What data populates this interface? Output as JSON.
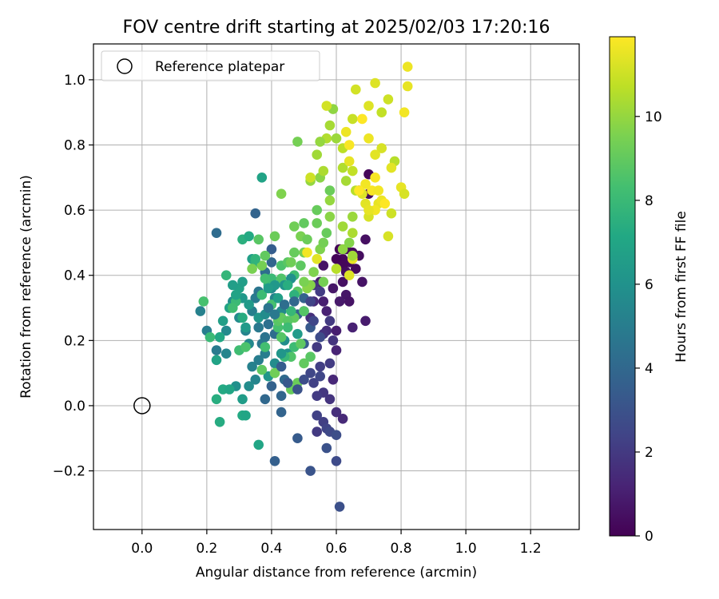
{
  "chart_data": {
    "type": "scatter",
    "title": "FOV centre drift starting at 2025/02/03 17:20:16",
    "xlabel": "Angular distance from reference (arcmin)",
    "ylabel": "Rotation from reference (arcmin)",
    "xlim": [
      -0.15,
      1.35
    ],
    "ylim": [
      -0.38,
      1.11
    ],
    "xticks": [
      0.0,
      0.2,
      0.4,
      0.6,
      0.8,
      1.0,
      1.2
    ],
    "xtick_labels": [
      "0.0",
      "0.2",
      "0.4",
      "0.6",
      "0.8",
      "1.0",
      "1.2"
    ],
    "yticks": [
      -0.2,
      0.0,
      0.2,
      0.4,
      0.6,
      0.8,
      1.0
    ],
    "ytick_labels": [
      "−0.2",
      "0.0",
      "0.2",
      "0.4",
      "0.6",
      "0.8",
      "1.0"
    ],
    "grid": true,
    "legend": {
      "placement": "upper-left",
      "entries": [
        {
          "label": "Reference platepar",
          "marker": "open-circle"
        }
      ]
    },
    "reference_point": {
      "x": 0.0,
      "y": 0.0
    },
    "colorbar": {
      "label": "Hours from first FF file",
      "colormap": "viridis",
      "range": [
        0,
        11.9
      ],
      "ticks": [
        0,
        2,
        4,
        6,
        8,
        10
      ],
      "tick_labels": [
        "0",
        "2",
        "4",
        "6",
        "8",
        "10"
      ]
    },
    "points": [
      [
        0.61,
        0.48,
        0.1
      ],
      [
        0.63,
        0.48,
        0.2
      ],
      [
        0.65,
        0.47,
        0.3
      ],
      [
        0.62,
        0.45,
        0.2
      ],
      [
        0.67,
        0.46,
        0.4
      ],
      [
        0.69,
        0.51,
        0.5
      ],
      [
        0.64,
        0.44,
        0.3
      ],
      [
        0.6,
        0.45,
        0.1
      ],
      [
        0.62,
        0.43,
        0.2
      ],
      [
        0.63,
        0.41,
        0.4
      ],
      [
        0.66,
        0.42,
        0.3
      ],
      [
        0.68,
        0.38,
        0.6
      ],
      [
        0.7,
        0.71,
        0.2
      ],
      [
        0.7,
        0.65,
        0.3
      ],
      [
        0.67,
        0.66,
        0.4
      ],
      [
        0.62,
        0.38,
        0.5
      ],
      [
        0.63,
        0.34,
        0.7
      ],
      [
        0.61,
        0.32,
        0.8
      ],
      [
        0.64,
        0.32,
        0.6
      ],
      [
        0.69,
        0.26,
        0.9
      ],
      [
        0.6,
        0.23,
        1.0
      ],
      [
        0.65,
        0.24,
        1.1
      ],
      [
        0.6,
        0.17,
        1.2
      ],
      [
        0.59,
        0.08,
        1.3
      ],
      [
        0.56,
        0.32,
        1.0
      ],
      [
        0.55,
        0.38,
        0.8
      ],
      [
        0.56,
        0.43,
        0.6
      ],
      [
        0.59,
        0.36,
        0.7
      ],
      [
        0.57,
        0.29,
        1.1
      ],
      [
        0.53,
        0.32,
        1.4
      ],
      [
        0.52,
        0.27,
        1.6
      ],
      [
        0.53,
        0.37,
        1.8
      ],
      [
        0.57,
        0.23,
        1.5
      ],
      [
        0.56,
        0.22,
        1.7
      ],
      [
        0.54,
        0.18,
        2.0
      ],
      [
        0.55,
        0.12,
        2.2
      ],
      [
        0.52,
        0.1,
        2.5
      ],
      [
        0.53,
        0.07,
        2.3
      ],
      [
        0.56,
        0.04,
        1.9
      ],
      [
        0.54,
        0.03,
        2.1
      ],
      [
        0.58,
        0.02,
        1.8
      ],
      [
        0.6,
        -0.02,
        1.6
      ],
      [
        0.56,
        -0.05,
        2.2
      ],
      [
        0.62,
        -0.04,
        1.4
      ],
      [
        0.57,
        -0.07,
        2.4
      ],
      [
        0.54,
        -0.08,
        2.0
      ],
      [
        0.58,
        -0.08,
        2.6
      ],
      [
        0.6,
        -0.09,
        2.8
      ],
      [
        0.54,
        -0.03,
        2.3
      ],
      [
        0.57,
        -0.13,
        3.0
      ],
      [
        0.6,
        -0.17,
        2.7
      ],
      [
        0.52,
        -0.2,
        3.1
      ],
      [
        0.61,
        -0.31,
        2.9
      ],
      [
        0.48,
        -0.1,
        3.4
      ],
      [
        0.41,
        -0.17,
        3.6
      ],
      [
        0.43,
        -0.02,
        3.8
      ],
      [
        0.38,
        0.02,
        4.0
      ],
      [
        0.43,
        0.03,
        3.9
      ],
      [
        0.44,
        0.08,
        4.1
      ],
      [
        0.4,
        0.06,
        3.7
      ],
      [
        0.5,
        0.19,
        3.5
      ],
      [
        0.52,
        0.24,
        3.3
      ],
      [
        0.5,
        0.29,
        3.2
      ],
      [
        0.48,
        0.28,
        3.6
      ],
      [
        0.41,
        0.22,
        4.2
      ],
      [
        0.38,
        0.21,
        4.5
      ],
      [
        0.37,
        0.19,
        4.7
      ],
      [
        0.39,
        0.25,
        4.4
      ],
      [
        0.36,
        0.24,
        4.8
      ],
      [
        0.38,
        0.16,
        5.0
      ],
      [
        0.35,
        0.33,
        4.9
      ],
      [
        0.34,
        0.29,
        5.1
      ],
      [
        0.32,
        0.23,
        5.3
      ],
      [
        0.33,
        0.19,
        5.5
      ],
      [
        0.34,
        0.12,
        5.2
      ],
      [
        0.35,
        0.08,
        5.4
      ],
      [
        0.33,
        0.06,
        5.7
      ],
      [
        0.29,
        0.06,
        5.9
      ],
      [
        0.3,
        0.27,
        5.6
      ],
      [
        0.28,
        0.32,
        5.8
      ],
      [
        0.26,
        0.23,
        5.6
      ],
      [
        0.26,
        0.16,
        5.4
      ],
      [
        0.23,
        0.17,
        4.9
      ],
      [
        0.2,
        0.23,
        5.0
      ],
      [
        0.18,
        0.29,
        5.2
      ],
      [
        0.23,
        0.53,
        4.2
      ],
      [
        0.35,
        0.59,
        3.8
      ],
      [
        0.4,
        0.48,
        3.5
      ],
      [
        0.4,
        0.44,
        3.9
      ],
      [
        0.38,
        0.41,
        4.3
      ],
      [
        0.36,
        0.35,
        4.6
      ],
      [
        0.36,
        0.14,
        5.0
      ],
      [
        0.4,
        0.36,
        5.6
      ],
      [
        0.41,
        0.33,
        5.3
      ],
      [
        0.43,
        0.29,
        5.5
      ],
      [
        0.44,
        0.2,
        5.8
      ],
      [
        0.45,
        0.16,
        6.0
      ],
      [
        0.41,
        0.13,
        5.7
      ],
      [
        0.39,
        0.09,
        6.2
      ],
      [
        0.32,
        0.24,
        6.4
      ],
      [
        0.31,
        0.33,
        6.3
      ],
      [
        0.3,
        0.36,
        6.8
      ],
      [
        0.28,
        0.37,
        6.6
      ],
      [
        0.27,
        0.3,
        6.9
      ],
      [
        0.25,
        0.26,
        6.7
      ],
      [
        0.24,
        0.21,
        7.1
      ],
      [
        0.23,
        0.14,
        6.9
      ],
      [
        0.25,
        0.05,
        7.2
      ],
      [
        0.27,
        0.05,
        7.0
      ],
      [
        0.23,
        0.02,
        7.4
      ],
      [
        0.24,
        -0.05,
        7.3
      ],
      [
        0.31,
        -0.03,
        7.2
      ],
      [
        0.32,
        -0.03,
        7.0
      ],
      [
        0.31,
        0.02,
        6.5
      ],
      [
        0.36,
        -0.12,
        7.0
      ],
      [
        0.31,
        0.51,
        7.5
      ],
      [
        0.33,
        0.52,
        7.2
      ],
      [
        0.37,
        0.7,
        6.9
      ],
      [
        0.34,
        0.45,
        6.7
      ],
      [
        0.35,
        0.44,
        7.6
      ],
      [
        0.26,
        0.4,
        7.8
      ],
      [
        0.29,
        0.32,
        8.0
      ],
      [
        0.28,
        0.3,
        8.2
      ],
      [
        0.19,
        0.32,
        8.4
      ],
      [
        0.21,
        0.21,
        8.0
      ],
      [
        0.3,
        0.17,
        8.2
      ],
      [
        0.32,
        0.18,
        8.5
      ],
      [
        0.38,
        0.18,
        8.3
      ],
      [
        0.43,
        0.21,
        8.7
      ],
      [
        0.42,
        0.24,
        8.4
      ],
      [
        0.47,
        0.18,
        8.1
      ],
      [
        0.46,
        0.15,
        8.6
      ],
      [
        0.49,
        0.19,
        8.9
      ],
      [
        0.44,
        0.15,
        7.9
      ],
      [
        0.42,
        0.26,
        8.8
      ],
      [
        0.43,
        0.27,
        9.0
      ],
      [
        0.4,
        0.31,
        8.4
      ],
      [
        0.37,
        0.34,
        8.1
      ],
      [
        0.39,
        0.37,
        7.7
      ],
      [
        0.4,
        0.39,
        8.0
      ],
      [
        0.38,
        0.39,
        8.3
      ],
      [
        0.43,
        0.39,
        8.6
      ],
      [
        0.43,
        0.43,
        8.5
      ],
      [
        0.45,
        0.44,
        8.8
      ],
      [
        0.47,
        0.4,
        8.2
      ],
      [
        0.49,
        0.43,
        8.9
      ],
      [
        0.47,
        0.47,
        9.1
      ],
      [
        0.47,
        0.55,
        9.3
      ],
      [
        0.49,
        0.52,
        9.5
      ],
      [
        0.51,
        0.51,
        9.2
      ],
      [
        0.5,
        0.47,
        9.4
      ],
      [
        0.53,
        0.41,
        9.6
      ],
      [
        0.52,
        0.37,
        9.7
      ],
      [
        0.51,
        0.36,
        9.8
      ],
      [
        0.5,
        0.38,
        9.5
      ],
      [
        0.55,
        0.48,
        9.6
      ],
      [
        0.54,
        0.56,
        9.2
      ],
      [
        0.56,
        0.5,
        9.4
      ],
      [
        0.57,
        0.53,
        9.1
      ],
      [
        0.58,
        0.58,
        9.8
      ],
      [
        0.58,
        0.63,
        10.0
      ],
      [
        0.62,
        0.48,
        9.9
      ],
      [
        0.64,
        0.5,
        9.7
      ],
      [
        0.65,
        0.58,
        10.1
      ],
      [
        0.62,
        0.55,
        10.2
      ],
      [
        0.65,
        0.53,
        10.4
      ],
      [
        0.66,
        0.66,
        10.6
      ],
      [
        0.63,
        0.69,
        10.3
      ],
      [
        0.62,
        0.73,
        10.5
      ],
      [
        0.65,
        0.72,
        10.8
      ],
      [
        0.52,
        0.69,
        10.0
      ],
      [
        0.55,
        0.7,
        9.8
      ],
      [
        0.54,
        0.77,
        10.2
      ],
      [
        0.56,
        0.72,
        10.4
      ],
      [
        0.57,
        0.82,
        10.5
      ],
      [
        0.58,
        0.86,
        10.3
      ],
      [
        0.59,
        0.91,
        9.9
      ],
      [
        0.6,
        0.82,
        10.1
      ],
      [
        0.62,
        0.79,
        10.7
      ],
      [
        0.65,
        0.88,
        10.9
      ],
      [
        0.66,
        0.97,
        11.1
      ],
      [
        0.72,
        0.99,
        11.3
      ],
      [
        0.74,
        0.9,
        10.8
      ],
      [
        0.76,
        0.94,
        11.0
      ],
      [
        0.78,
        0.75,
        10.6
      ],
      [
        0.74,
        0.79,
        11.2
      ],
      [
        0.77,
        0.73,
        11.4
      ],
      [
        0.8,
        0.67,
        11.5
      ],
      [
        0.82,
        1.04,
        11.6
      ],
      [
        0.81,
        0.9,
        11.7
      ],
      [
        0.81,
        0.65,
        11.2
      ],
      [
        0.77,
        0.59,
        11.0
      ],
      [
        0.73,
        0.62,
        11.5
      ],
      [
        0.71,
        0.66,
        11.8
      ],
      [
        0.72,
        0.6,
        11.7
      ],
      [
        0.74,
        0.63,
        11.6
      ],
      [
        0.69,
        0.62,
        11.4
      ],
      [
        0.68,
        0.65,
        11.3
      ],
      [
        0.65,
        0.45,
        11.5
      ],
      [
        0.7,
        0.58,
        11.2
      ],
      [
        0.68,
        0.88,
        11.9
      ],
      [
        0.7,
        0.82,
        11.6
      ],
      [
        0.72,
        0.77,
        11.4
      ],
      [
        0.69,
        0.68,
        11.7
      ],
      [
        0.72,
        0.7,
        11.8
      ],
      [
        0.75,
        0.62,
        11.9
      ],
      [
        0.82,
        0.98,
        11.5
      ],
      [
        0.7,
        0.92,
        11.3
      ],
      [
        0.57,
        0.92,
        11.1
      ],
      [
        0.52,
        0.7,
        11.0
      ],
      [
        0.51,
        0.47,
        11.7
      ],
      [
        0.54,
        0.45,
        11.4
      ],
      [
        0.64,
        0.4,
        11.3
      ],
      [
        0.64,
        0.8,
        11.8
      ],
      [
        0.63,
        0.84,
        11.6
      ],
      [
        0.64,
        0.75,
        11.5
      ],
      [
        0.67,
        0.66,
        11.9
      ],
      [
        0.76,
        0.52,
        11.2
      ],
      [
        0.73,
        0.66,
        11.7
      ],
      [
        0.7,
        0.6,
        11.5
      ],
      [
        0.6,
        0.42,
        10.6
      ],
      [
        0.65,
        0.46,
        10.2
      ],
      [
        0.56,
        0.38,
        9.4
      ],
      [
        0.48,
        0.35,
        8.9
      ],
      [
        0.46,
        0.44,
        9.3
      ],
      [
        0.5,
        0.29,
        8.7
      ],
      [
        0.47,
        0.27,
        9.0
      ],
      [
        0.45,
        0.26,
        8.8
      ],
      [
        0.48,
        0.07,
        9.2
      ],
      [
        0.5,
        0.13,
        9.0
      ],
      [
        0.52,
        0.15,
        8.8
      ],
      [
        0.46,
        0.05,
        9.1
      ],
      [
        0.41,
        0.1,
        9.3
      ],
      [
        0.37,
        0.11,
        8.9
      ],
      [
        0.37,
        0.43,
        9.4
      ],
      [
        0.41,
        0.52,
        9.2
      ],
      [
        0.38,
        0.46,
        9.0
      ],
      [
        0.36,
        0.51,
        8.8
      ],
      [
        0.34,
        0.42,
        9.5
      ],
      [
        0.5,
        0.56,
        9.0
      ],
      [
        0.54,
        0.6,
        9.1
      ],
      [
        0.58,
        0.66,
        9.2
      ],
      [
        0.43,
        0.65,
        9.6
      ],
      [
        0.48,
        0.81,
        9.4
      ],
      [
        0.55,
        0.81,
        10.0
      ],
      [
        0.46,
        0.39,
        5.9
      ],
      [
        0.44,
        0.37,
        6.1
      ],
      [
        0.41,
        0.37,
        6.3
      ],
      [
        0.39,
        0.36,
        6.5
      ],
      [
        0.42,
        0.33,
        6.7
      ],
      [
        0.36,
        0.27,
        6.2
      ],
      [
        0.33,
        0.31,
        6.4
      ],
      [
        0.31,
        0.38,
        6.6
      ],
      [
        0.29,
        0.34,
        6.9
      ],
      [
        0.31,
        0.27,
        7.3
      ],
      [
        0.35,
        0.45,
        7.7
      ],
      [
        0.45,
        0.37,
        7.4
      ],
      [
        0.47,
        0.34,
        7.6
      ],
      [
        0.46,
        0.29,
        7.9
      ],
      [
        0.45,
        0.24,
        8.1
      ],
      [
        0.48,
        0.22,
        6.4
      ],
      [
        0.43,
        0.16,
        6.2
      ],
      [
        0.38,
        0.28,
        5.7
      ],
      [
        0.39,
        0.3,
        4.6
      ],
      [
        0.41,
        0.28,
        4.8
      ],
      [
        0.44,
        0.31,
        4.3
      ],
      [
        0.47,
        0.32,
        4.0
      ],
      [
        0.5,
        0.33,
        3.7
      ],
      [
        0.52,
        0.32,
        2.4
      ],
      [
        0.55,
        0.35,
        2.1
      ],
      [
        0.53,
        0.26,
        2.5
      ],
      [
        0.55,
        0.21,
        2.7
      ],
      [
        0.58,
        0.26,
        2.0
      ],
      [
        0.59,
        0.2,
        1.8
      ],
      [
        0.58,
        0.13,
        2.1
      ],
      [
        0.55,
        0.09,
        2.5
      ],
      [
        0.5,
        0.08,
        2.8
      ],
      [
        0.48,
        0.05,
        3.0
      ],
      [
        0.45,
        0.07,
        3.3
      ],
      [
        0.43,
        0.12,
        3.5
      ]
    ]
  }
}
